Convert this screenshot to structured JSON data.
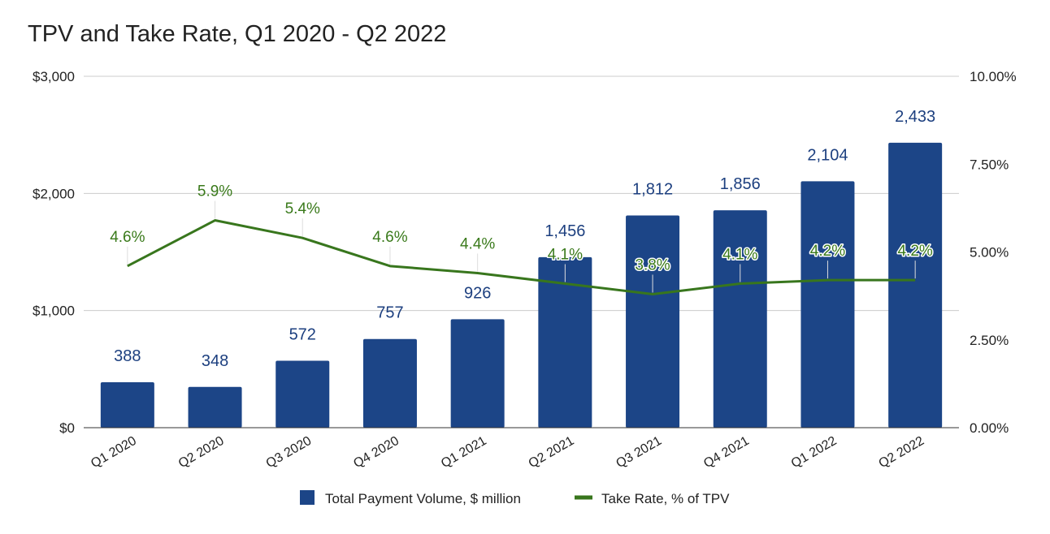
{
  "chart_data": {
    "type": "bar",
    "title": "TPV and Take Rate, Q1 2020 - Q2 2022",
    "categories": [
      "Q1 2020",
      "Q2 2020",
      "Q3 2020",
      "Q4 2020",
      "Q1 2021",
      "Q2 2021",
      "Q3 2021",
      "Q4 2021",
      "Q1 2022",
      "Q2 2022"
    ],
    "series": [
      {
        "name": "Total Payment Volume, $ million",
        "type": "bar",
        "axis": "left",
        "color": "#1c4587",
        "values": [
          388,
          348,
          572,
          757,
          926,
          1456,
          1812,
          1856,
          2104,
          2433
        ],
        "labels": [
          "388",
          "348",
          "572",
          "757",
          "926",
          "1,456",
          "1,812",
          "1,856",
          "2,104",
          "2,433"
        ]
      },
      {
        "name": "Take Rate, % of TPV",
        "type": "line",
        "axis": "right",
        "color": "#38761d",
        "values": [
          4.6,
          5.9,
          5.4,
          4.6,
          4.4,
          4.1,
          3.8,
          4.1,
          4.2,
          4.2
        ],
        "labels": [
          "4.6%",
          "5.9%",
          "5.4%",
          "4.6%",
          "4.4%",
          "4.1%",
          "3.8%",
          "4.1%",
          "4.2%",
          "4.2%"
        ]
      }
    ],
    "y_left": {
      "min": 0,
      "max": 3000,
      "ticks": [
        0,
        1000,
        2000,
        3000
      ],
      "tick_labels": [
        "$0",
        "$1,000",
        "$2,000",
        "$3,000"
      ]
    },
    "y_right": {
      "min": 0,
      "max": 10,
      "ticks": [
        0,
        2.5,
        5,
        7.5,
        10
      ],
      "tick_labels": [
        "0.00%",
        "2.50%",
        "5.00%",
        "7.50%",
        "10.00%"
      ]
    },
    "grid": true,
    "legend_position": "bottom"
  }
}
